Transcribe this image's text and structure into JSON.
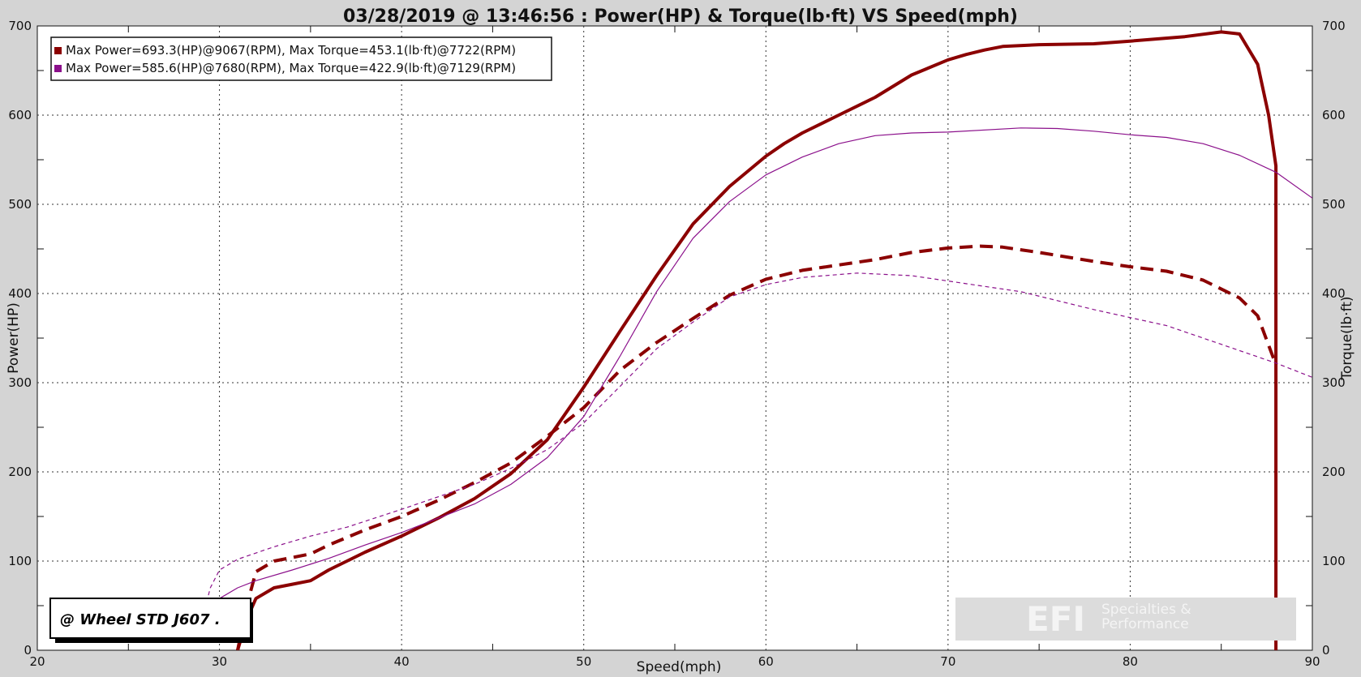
{
  "chart_data": {
    "type": "line",
    "title": "03/28/2019 @ 13:46:56 : Power(HP) & Torque(lb·ft) VS Speed(mph)",
    "xlabel": "Speed(mph)",
    "ylabel_left": "Power(HP)",
    "ylabel_right": "Torque(lb·ft)",
    "xlim": [
      20,
      90
    ],
    "ylim": [
      0,
      700
    ],
    "x_ticks": [
      20,
      30,
      40,
      50,
      60,
      70,
      80,
      90
    ],
    "y_ticks": [
      0,
      100,
      200,
      300,
      400,
      500,
      600,
      700
    ],
    "grid": true,
    "legend_position": "top-left",
    "legend": [
      {
        "label": "Max Power=693.3(HP)@9067(RPM), Max Torque=453.1(lb·ft)@7722(RPM)",
        "color": "#8b0000"
      },
      {
        "label": "Max Power=585.6(HP)@7680(RPM), Max Torque=422.9(lb·ft)@7129(RPM)",
        "color": "#8b108b"
      }
    ],
    "series": [
      {
        "color": "#8b0000",
        "style": "solid",
        "width": 4,
        "points": [
          [
            31,
            0
          ],
          [
            31.5,
            35
          ],
          [
            32,
            58
          ],
          [
            33,
            70
          ],
          [
            34,
            74
          ],
          [
            35,
            78
          ],
          [
            36,
            90
          ],
          [
            37,
            100
          ],
          [
            38,
            110
          ],
          [
            40,
            128
          ],
          [
            42,
            148
          ],
          [
            44,
            170
          ],
          [
            46,
            198
          ],
          [
            48,
            236
          ],
          [
            50,
            295
          ],
          [
            52,
            358
          ],
          [
            54,
            420
          ],
          [
            56,
            478
          ],
          [
            58,
            520
          ],
          [
            60,
            554
          ],
          [
            61,
            568
          ],
          [
            62,
            580
          ],
          [
            64,
            600
          ],
          [
            66,
            620
          ],
          [
            68,
            645
          ],
          [
            70,
            662
          ],
          [
            71,
            668
          ],
          [
            72,
            673
          ],
          [
            73,
            677
          ],
          [
            75,
            679
          ],
          [
            78,
            680
          ],
          [
            80,
            683
          ],
          [
            83,
            688
          ],
          [
            85,
            693.3
          ],
          [
            86,
            691
          ],
          [
            87,
            657
          ],
          [
            87.6,
            600
          ],
          [
            88,
            543
          ],
          [
            88,
            0
          ]
        ]
      },
      {
        "color": "#8b0000",
        "style": "dashed",
        "width": 4,
        "points": [
          [
            31,
            0
          ],
          [
            31.5,
            50
          ],
          [
            32,
            88
          ],
          [
            33,
            100
          ],
          [
            34,
            104
          ],
          [
            35,
            108
          ],
          [
            36,
            118
          ],
          [
            38,
            135
          ],
          [
            40,
            150
          ],
          [
            42,
            168
          ],
          [
            44,
            188
          ],
          [
            46,
            210
          ],
          [
            48,
            240
          ],
          [
            50,
            272
          ],
          [
            52,
            314
          ],
          [
            54,
            345
          ],
          [
            56,
            372
          ],
          [
            58,
            398
          ],
          [
            60,
            416
          ],
          [
            62,
            426
          ],
          [
            64,
            432
          ],
          [
            66,
            438
          ],
          [
            68,
            446
          ],
          [
            70,
            451
          ],
          [
            71.8,
            453.1
          ],
          [
            73,
            452
          ],
          [
            75,
            446
          ],
          [
            78,
            436
          ],
          [
            80,
            430
          ],
          [
            82,
            425
          ],
          [
            84,
            415
          ],
          [
            86,
            395
          ],
          [
            87,
            375
          ],
          [
            88,
            320
          ]
        ]
      },
      {
        "color": "#8b108b",
        "style": "solid",
        "width": 1.2,
        "points": [
          [
            29.2,
            42
          ],
          [
            30,
            58
          ],
          [
            31,
            70
          ],
          [
            32,
            78
          ],
          [
            34,
            90
          ],
          [
            36,
            103
          ],
          [
            38,
            118
          ],
          [
            40,
            132
          ],
          [
            42,
            148
          ],
          [
            44,
            164
          ],
          [
            46,
            186
          ],
          [
            48,
            216
          ],
          [
            50,
            262
          ],
          [
            52,
            330
          ],
          [
            54,
            402
          ],
          [
            56,
            462
          ],
          [
            58,
            503
          ],
          [
            60,
            533
          ],
          [
            62,
            553
          ],
          [
            64,
            568
          ],
          [
            66,
            577
          ],
          [
            68,
            580
          ],
          [
            70,
            581
          ],
          [
            74,
            585.6
          ],
          [
            76,
            585
          ],
          [
            78,
            582
          ],
          [
            80,
            578
          ],
          [
            82,
            575
          ],
          [
            84,
            568
          ],
          [
            86,
            555
          ],
          [
            88,
            536
          ],
          [
            90,
            507
          ]
        ]
      },
      {
        "color": "#8b108b",
        "style": "dashed",
        "width": 1.2,
        "points": [
          [
            29,
            30
          ],
          [
            29.5,
            70
          ],
          [
            30,
            90
          ],
          [
            31,
            102
          ],
          [
            33,
            116
          ],
          [
            35,
            128
          ],
          [
            37,
            138
          ],
          [
            40,
            158
          ],
          [
            42,
            172
          ],
          [
            44,
            186
          ],
          [
            46,
            204
          ],
          [
            48,
            225
          ],
          [
            50,
            255
          ],
          [
            52,
            296
          ],
          [
            54,
            338
          ],
          [
            56,
            368
          ],
          [
            58,
            396
          ],
          [
            60,
            410
          ],
          [
            62,
            418
          ],
          [
            65,
            422.9
          ],
          [
            68,
            420
          ],
          [
            70,
            414
          ],
          [
            74,
            402
          ],
          [
            78,
            382
          ],
          [
            82,
            364
          ],
          [
            84,
            350
          ],
          [
            86,
            336
          ],
          [
            88,
            322
          ],
          [
            90,
            306
          ]
        ]
      }
    ],
    "annotations": {
      "badge_text": "@ Wheel STD J607  .",
      "watermark_main": "EFI",
      "watermark_line1": "Specialties &",
      "watermark_line2": "Performance"
    }
  }
}
